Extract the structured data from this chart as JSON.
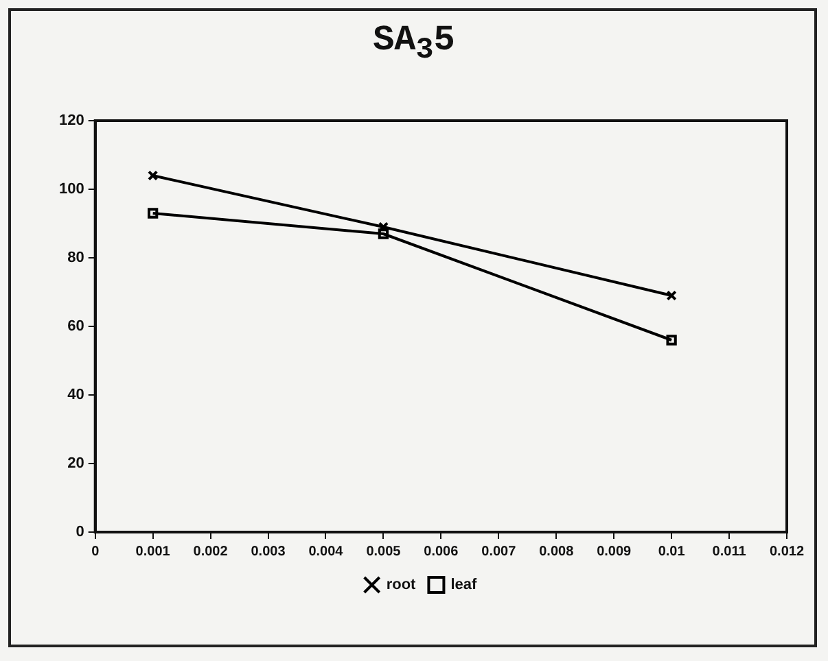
{
  "chart_data": {
    "type": "line",
    "title": "SA$_{3}$5",
    "x": [
      0.001,
      0.005,
      0.01
    ],
    "series": [
      {
        "name": "root",
        "color": "#000000",
        "marker": "cross",
        "values": [
          104,
          89,
          69
        ]
      },
      {
        "name": "leaf",
        "color": "#000000",
        "marker": "square",
        "values": [
          93,
          87,
          56
        ]
      }
    ],
    "xlim": [
      0,
      0.012
    ],
    "xticks": [
      0,
      0.001,
      0.002,
      0.003,
      0.004,
      0.005,
      0.006,
      0.007,
      0.008,
      0.009,
      0.01,
      0.011,
      0.012
    ],
    "ylim": [
      0,
      120
    ],
    "yticks": [
      0,
      20,
      40,
      60,
      80,
      100,
      120
    ],
    "grid": false,
    "legend": "bottom",
    "line_style": "solid"
  }
}
